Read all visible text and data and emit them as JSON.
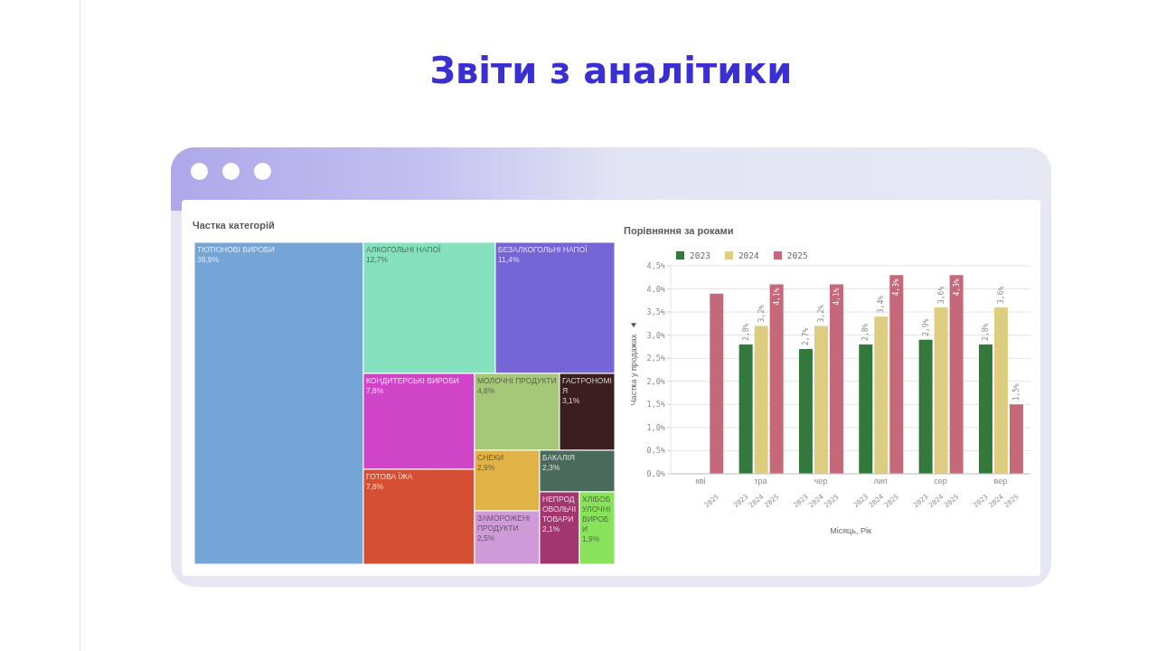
{
  "chart_data": [
    {
      "type": "other",
      "title": "Звіти з аналітики"
    },
    {
      "type": "other",
      "title": "Частка категорій",
      "categories": [
        "ТЮТЮНОВІ ВИРОБИ",
        "АЛКОГОЛЬНІ НАПОЇ",
        "БЕЗАЛКОГОЛЬНІ НАПОЇ",
        "КОНДИТЕРСЬКІ ВИРОБИ",
        "ГОТОВА ЇЖА",
        "МОЛОЧНІ ПРОДУКТИ",
        "ГАСТРОНОМІЯ",
        "СНЕКИ",
        "ЗАМОРОЖЕНІ ПРОДУКТИ",
        "БАКАЛІЯ",
        "НЕПРОДОВОЛЬЧІ ТОВАРИ",
        "ХЛІБОБУЛОЧНІ ВИРОБИ"
      ],
      "values": [
        39.9,
        12.7,
        11.4,
        7.8,
        7.8,
        4.8,
        3.1,
        2.9,
        2.5,
        2.3,
        2.1,
        1.9
      ],
      "value_labels": [
        "39,9%",
        "12,7%",
        "11,4%",
        "7,8%",
        "7,8%",
        "4,8%",
        "3,1%",
        "2,9%",
        "2,5%",
        "2,3%",
        "2,1%",
        "1,9%"
      ],
      "colors": [
        "#75a5d6",
        "#84e0bd",
        "#7565d6",
        "#d045c8",
        "#d44f34",
        "#a5c878",
        "#3c1e20",
        "#e1b245",
        "#cf9ad8",
        "#4a6a5b",
        "#a13670",
        "#88e35a"
      ]
    },
    {
      "type": "bar",
      "title": "Порівняння за роками",
      "xlabel": "Місяць, Рік",
      "ylabel": "Частка у продажах",
      "categories": [
        "кві",
        "тра",
        "чер",
        "лип",
        "сер",
        "вер"
      ],
      "series": [
        {
          "name": "2023",
          "color": "#32793b",
          "values": [
            null,
            2.8,
            2.7,
            2.8,
            2.9,
            2.8
          ],
          "value_labels": [
            null,
            "2,8%",
            "2,7%",
            "2,8%",
            "2,9%",
            "2,8%"
          ]
        },
        {
          "name": "2024",
          "color": "#dccd80",
          "values": [
            null,
            3.2,
            3.2,
            3.4,
            3.6,
            3.6
          ],
          "value_labels": [
            null,
            "3,2%",
            "3,2%",
            "3,4%",
            "3,6%",
            "3,6%"
          ]
        },
        {
          "name": "2025",
          "color": "#c56879",
          "values": [
            3.9,
            4.1,
            4.1,
            4.3,
            4.3,
            1.5
          ],
          "value_labels": [
            null,
            "4,1%",
            "4,1%",
            "4,3%",
            "4,3%",
            "1,5%"
          ]
        }
      ],
      "ylim": [
        0,
        4.5
      ],
      "yticks": [
        {
          "value": 0,
          "label": "0,0%"
        },
        {
          "value": 0.5,
          "label": "0,5%"
        },
        {
          "value": 1,
          "label": "1,0%"
        },
        {
          "value": 1.5,
          "label": "1,5%"
        },
        {
          "value": 2,
          "label": "2,0%"
        },
        {
          "value": 2.5,
          "label": "2,5%"
        },
        {
          "value": 3,
          "label": "3,0%"
        },
        {
          "value": 3.5,
          "label": "3,5%"
        },
        {
          "value": 4,
          "label": "4,0%"
        },
        {
          "value": 4.5,
          "label": "4,5%"
        }
      ],
      "grid": "y",
      "legend": "top left"
    }
  ]
}
